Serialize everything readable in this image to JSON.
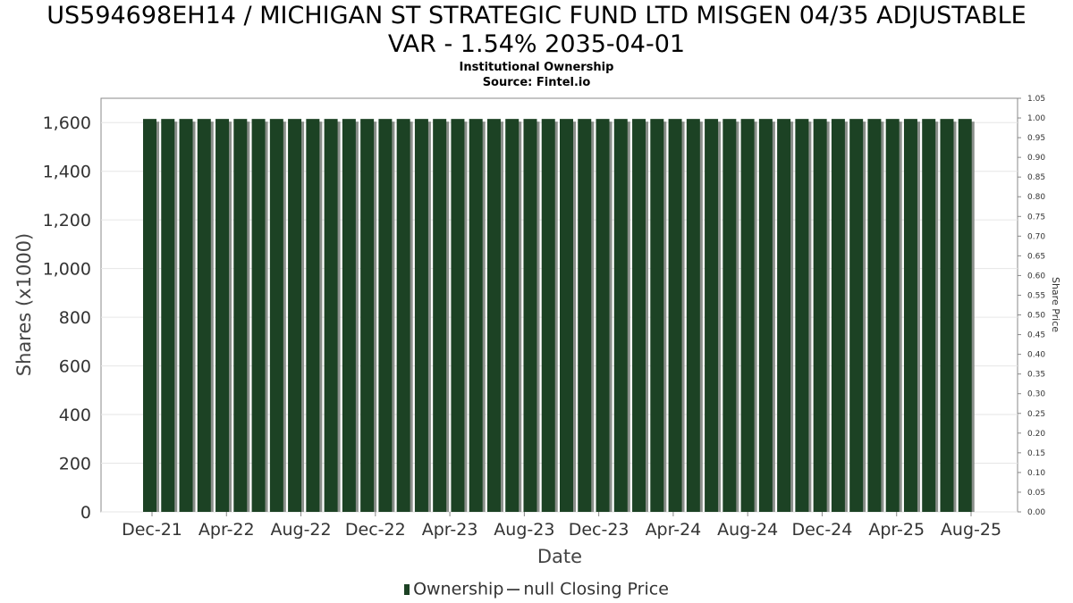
{
  "chart_data": {
    "type": "bar",
    "title": "US594698EH14 / MICHIGAN ST STRATEGIC FUND LTD MISGEN 04/35 ADJUSTABLE VAR - 1.54% 2035-04-01",
    "title_line1": "US594698EH14 / MICHIGAN ST STRATEGIC FUND LTD MISGEN 04/35 ADJUSTABLE",
    "title_line2": "VAR - 1.54% 2035-04-01",
    "subtitle": "Institutional Ownership",
    "source": "Source: Fintel.io",
    "xlabel": "Date",
    "ylabel": "Shares (x1000)",
    "y2label": "Share Price",
    "ylim": [
      0,
      1700
    ],
    "y2lim": [
      0,
      1.05
    ],
    "y_ticks": [
      "0",
      "200",
      "400",
      "600",
      "800",
      "1,000",
      "1,200",
      "1,400",
      "1,600"
    ],
    "y2_ticks": [
      "0.00",
      "0.05",
      "0.10",
      "0.15",
      "0.20",
      "0.25",
      "0.30",
      "0.35",
      "0.40",
      "0.45",
      "0.50",
      "0.55",
      "0.60",
      "0.65",
      "0.70",
      "0.75",
      "0.80",
      "0.85",
      "0.90",
      "0.95",
      "1.00",
      "1.05"
    ],
    "x_ticks": [
      "Dec-21",
      "Apr-22",
      "Aug-22",
      "Dec-22",
      "Apr-23",
      "Aug-23",
      "Dec-23",
      "Apr-24",
      "Aug-24",
      "Dec-24",
      "Apr-25",
      "Aug-25"
    ],
    "grid": true,
    "bar_color": "#1c4224",
    "series": [
      {
        "name": "Ownership",
        "values": [
          1615,
          1615,
          1615,
          1615,
          1615,
          1615,
          1615,
          1615,
          1615,
          1615,
          1615,
          1615,
          1615,
          1615,
          1615,
          1615,
          1615,
          1615,
          1615,
          1615,
          1615,
          1615,
          1615,
          1615,
          1615,
          1615,
          1615,
          1615,
          1615,
          1615,
          1615,
          1615,
          1615,
          1615,
          1615,
          1615,
          1615,
          1615,
          1615,
          1615,
          1615,
          1615,
          1615,
          1615,
          1615,
          1615
        ]
      }
    ],
    "legend": {
      "ownership_label": "Ownership",
      "price_label": "null Closing Price",
      "placement": "bottom"
    }
  }
}
